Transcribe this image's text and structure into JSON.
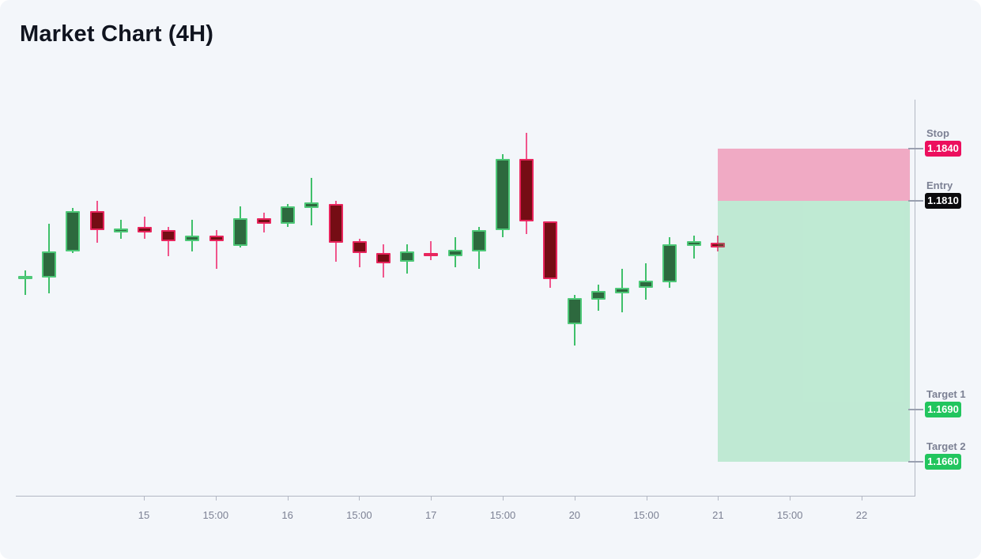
{
  "title": "Market Chart (4H)",
  "chart_data": {
    "type": "candlestick",
    "timeframe": "4H",
    "title": "Market Chart (4H)",
    "grid": "off",
    "legend_position": "none",
    "x_axis": {
      "tick_labels": [
        "15",
        "15:00",
        "16",
        "15:00",
        "17",
        "15:00",
        "20",
        "15:00",
        "21",
        "15:00",
        "22"
      ]
    },
    "y_axis": {
      "visible_range": [
        1.162,
        1.187
      ],
      "labels_shown": [
        "1.1840",
        "1.1810",
        "1.1690",
        "1.1660"
      ]
    },
    "candles": [
      {
        "o": 1.1765,
        "h": 1.177,
        "l": 1.1756,
        "c": 1.1767
      },
      {
        "o": 1.1766,
        "h": 1.1797,
        "l": 1.1757,
        "c": 1.1781
      },
      {
        "o": 1.1781,
        "h": 1.1806,
        "l": 1.178,
        "c": 1.1804
      },
      {
        "o": 1.1804,
        "h": 1.181,
        "l": 1.1786,
        "c": 1.1793
      },
      {
        "o": 1.1792,
        "h": 1.1799,
        "l": 1.1788,
        "c": 1.1794
      },
      {
        "o": 1.1795,
        "h": 1.1801,
        "l": 1.1788,
        "c": 1.1792
      },
      {
        "o": 1.1793,
        "h": 1.1795,
        "l": 1.1778,
        "c": 1.1787
      },
      {
        "o": 1.1787,
        "h": 1.1799,
        "l": 1.1781,
        "c": 1.179
      },
      {
        "o": 1.179,
        "h": 1.1793,
        "l": 1.1771,
        "c": 1.1787
      },
      {
        "o": 1.1784,
        "h": 1.1807,
        "l": 1.1783,
        "c": 1.18
      },
      {
        "o": 1.18,
        "h": 1.1803,
        "l": 1.1792,
        "c": 1.1797
      },
      {
        "o": 1.1797,
        "h": 1.1808,
        "l": 1.1795,
        "c": 1.1807
      },
      {
        "o": 1.1806,
        "h": 1.1823,
        "l": 1.1796,
        "c": 1.1809
      },
      {
        "o": 1.1808,
        "h": 1.181,
        "l": 1.1775,
        "c": 1.1786
      },
      {
        "o": 1.1787,
        "h": 1.1788,
        "l": 1.1772,
        "c": 1.178
      },
      {
        "o": 1.178,
        "h": 1.1785,
        "l": 1.1766,
        "c": 1.1774
      },
      {
        "o": 1.1775,
        "h": 1.1785,
        "l": 1.1768,
        "c": 1.1781
      },
      {
        "o": 1.178,
        "h": 1.1787,
        "l": 1.1776,
        "c": 1.1778
      },
      {
        "o": 1.1778,
        "h": 1.1789,
        "l": 1.1772,
        "c": 1.1782
      },
      {
        "o": 1.1781,
        "h": 1.1795,
        "l": 1.1771,
        "c": 1.1793
      },
      {
        "o": 1.1793,
        "h": 1.1837,
        "l": 1.1789,
        "c": 1.1834
      },
      {
        "o": 1.1834,
        "h": 1.1849,
        "l": 1.1791,
        "c": 1.1798
      },
      {
        "o": 1.1798,
        "h": 1.1798,
        "l": 1.176,
        "c": 1.1765
      },
      {
        "o": 1.1739,
        "h": 1.1756,
        "l": 1.1727,
        "c": 1.1754
      },
      {
        "o": 1.1753,
        "h": 1.1762,
        "l": 1.1747,
        "c": 1.1758
      },
      {
        "o": 1.1757,
        "h": 1.1771,
        "l": 1.1746,
        "c": 1.176
      },
      {
        "o": 1.176,
        "h": 1.1774,
        "l": 1.1753,
        "c": 1.1764
      },
      {
        "o": 1.1763,
        "h": 1.1789,
        "l": 1.176,
        "c": 1.1785
      },
      {
        "o": 1.1784,
        "h": 1.179,
        "l": 1.1777,
        "c": 1.1787
      },
      {
        "o": 1.1786,
        "h": 1.179,
        "l": 1.1781,
        "c": 1.1783
      }
    ]
  },
  "trade_setup": {
    "levels": [
      {
        "name": "stop",
        "label": "Stop",
        "price": "1.1840"
      },
      {
        "name": "entry",
        "label": "Entry",
        "price": "1.1810"
      },
      {
        "name": "target1",
        "label": "Target 1",
        "price": "1.1690"
      },
      {
        "name": "target2",
        "label": "Target 2",
        "price": "1.1660"
      }
    ],
    "zones": [
      {
        "name": "risk-zone",
        "from_price": 1.184,
        "to_price": 1.181
      },
      {
        "name": "reward-zone",
        "from_price": 1.181,
        "to_price": 1.166
      }
    ]
  },
  "colors": {
    "background": "#f3f6fa",
    "up_fill": "#2d693e",
    "up_border": "#4ec878",
    "up_wick": "#3fc06a",
    "down_fill": "#750d14",
    "down_border": "#e8255d",
    "down_wick": "#f0558c",
    "risk_zone": "rgba(236,64,122,0.42)",
    "reward_zone": "rgba(34,197,94,0.25)",
    "stop_badge": "#ec0f5e",
    "entry_badge": "#0b0b0d",
    "target_badge": "#22c55e",
    "axis_line": "#b2b7c3",
    "label_text": "#7c8194",
    "title_text": "#10141f"
  }
}
